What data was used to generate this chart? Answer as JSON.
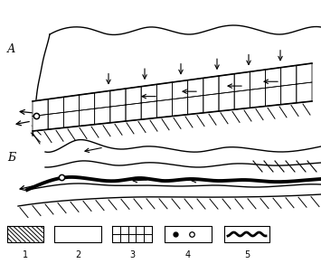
{
  "fig_width": 3.55,
  "fig_height": 3.02,
  "dpi": 100,
  "bg_color": "#ffffff",
  "label_A": "А",
  "label_B": "Б",
  "legend_labels": [
    "1",
    "2",
    "3",
    "4",
    "5"
  ]
}
